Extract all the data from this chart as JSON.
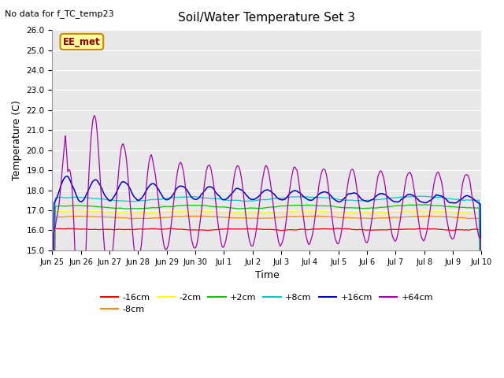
{
  "title": "Soil/Water Temperature Set 3",
  "xlabel": "Time",
  "ylabel": "Temperature (C)",
  "annotation_text": "No data for f_TC_temp23",
  "legend_label_text": "EE_met",
  "ylim": [
    15.0,
    26.0
  ],
  "yticks": [
    15.0,
    16.0,
    17.0,
    18.0,
    19.0,
    20.0,
    21.0,
    22.0,
    23.0,
    24.0,
    25.0,
    26.0
  ],
  "xtick_labels": [
    "Jun 25",
    "Jun 26",
    "Jun 27",
    "Jun 28",
    "Jun 29",
    "Jun 30",
    "Jul 1",
    "Jul 2",
    "Jul 3",
    "Jul 4",
    "Jul 5",
    "Jul 6",
    "Jul 7",
    "Jul 8",
    "Jul 9",
    "Jul 10"
  ],
  "colors": {
    "-16cm": "#ff0000",
    "-8cm": "#ff8800",
    "-2cm": "#ffff00",
    "+2cm": "#00cc00",
    "+8cm": "#00cccc",
    "+16cm": "#0000cc",
    "+64cm": "#aa00aa"
  },
  "figsize": [
    6.4,
    4.8
  ],
  "dpi": 100,
  "fig_bg": "#ffffff",
  "plot_bg": "#e8e8e8"
}
